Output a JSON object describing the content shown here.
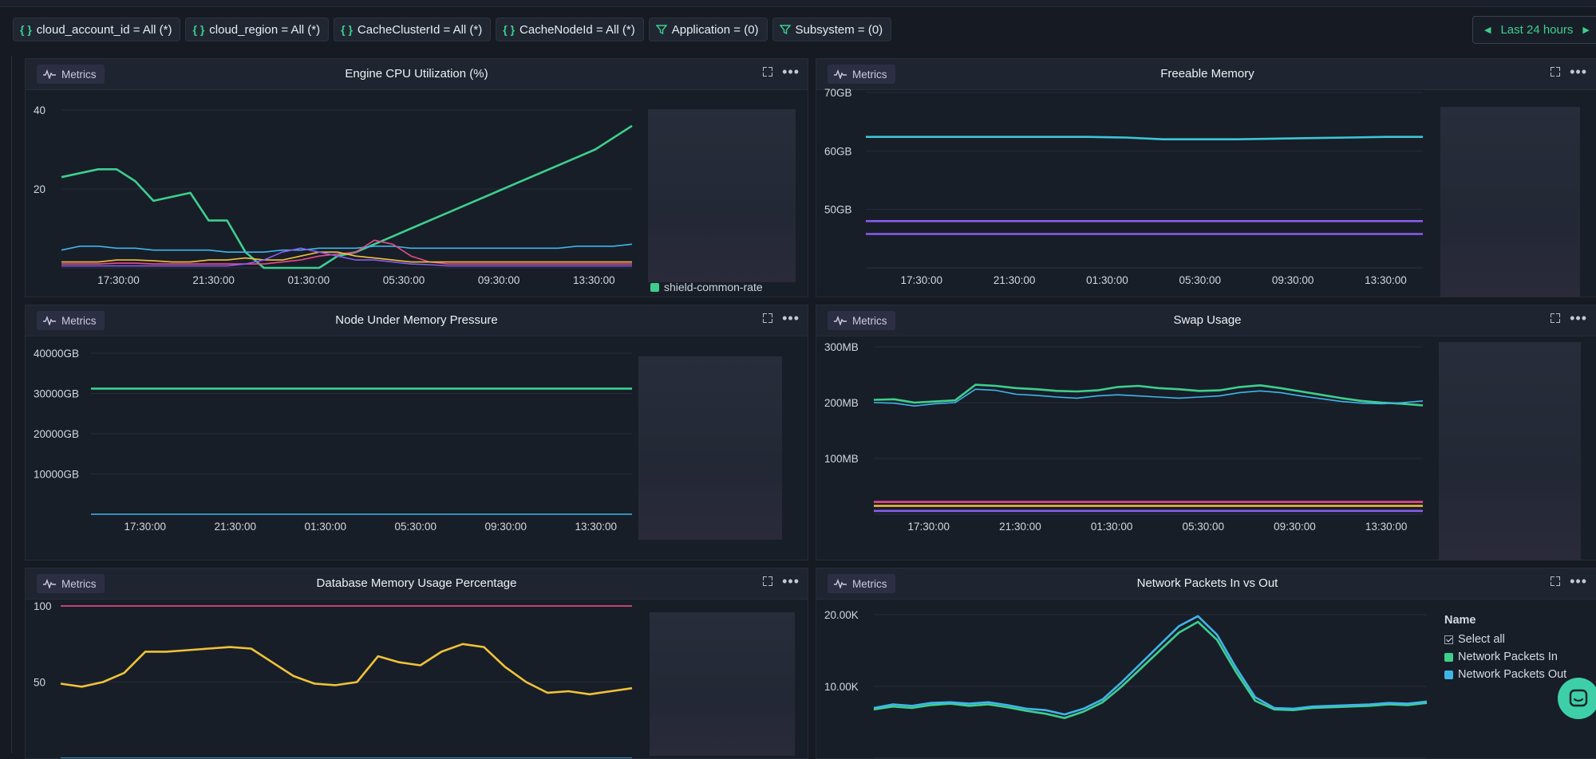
{
  "filters": [
    {
      "icon": "braces-icon",
      "label": "cloud_account_id = All (*)"
    },
    {
      "icon": "braces-icon",
      "label": "cloud_region = All (*)"
    },
    {
      "icon": "braces-icon",
      "label": "CacheClusterId = All (*)"
    },
    {
      "icon": "braces-icon",
      "label": "CacheNodeId = All (*)"
    },
    {
      "icon": "funnel-icon",
      "label": "Application = (0)"
    },
    {
      "icon": "funnel-icon",
      "label": "Subsystem = (0)"
    }
  ],
  "time_range": {
    "label": "Last 24 hours"
  },
  "badge_label": "Metrics",
  "colors": {
    "accent": "#3ecf8e",
    "green": "#3ecf8e",
    "blue": "#3fb5ea",
    "purple": "#8a5cf0",
    "pink": "#e84a8a",
    "yellow": "#f0c23a",
    "cyan": "#3cc7d6"
  },
  "panels": {
    "cpu": {
      "title": "Engine CPU Utilization (%)",
      "legend_item": "shield-common-rate"
    },
    "freeable": {
      "title": "Freeable Memory"
    },
    "pressure": {
      "title": "Node Under Memory Pressure"
    },
    "swap": {
      "title": "Swap Usage"
    },
    "dbmem": {
      "title": "Database Memory Usage Percentage"
    },
    "packets": {
      "title": "Network Packets In vs Out",
      "legend_header": "Name",
      "select_all": "Select all",
      "series_in": "Network Packets In",
      "series_out": "Network Packets Out"
    }
  },
  "chart_data": [
    {
      "type": "line",
      "title": "Engine CPU Utilization (%)",
      "x_ticks": [
        "17:30:00",
        "21:30:00",
        "01:30:00",
        "05:30:00",
        "09:30:00",
        "13:30:00"
      ],
      "y_ticks": [
        "20",
        "40"
      ],
      "ylim": [
        0,
        40
      ],
      "series": [
        {
          "name": "shield-common-rate",
          "color": "#3ecf8e",
          "values": [
            23,
            24,
            25,
            25,
            22,
            17,
            18,
            19,
            12,
            12,
            4,
            0,
            0,
            0,
            0,
            3,
            4,
            6,
            8,
            10,
            12,
            14,
            16,
            18,
            20,
            22,
            24,
            26,
            28,
            30,
            33,
            36
          ]
        },
        {
          "color": "#3fb5ea",
          "values": [
            4.5,
            5.5,
            5.5,
            5,
            5,
            4.5,
            4.5,
            4.5,
            4.5,
            4,
            4,
            4,
            4.5,
            4.5,
            5,
            5,
            5,
            5.5,
            5.5,
            5,
            5,
            5,
            5,
            5,
            5,
            5,
            5,
            5,
            5.5,
            5.5,
            5.5,
            6
          ]
        },
        {
          "color": "#e84a8a",
          "values": [
            1,
            1,
            1,
            1.2,
            1.2,
            1,
            1,
            1,
            1,
            1,
            1,
            1,
            1.5,
            2,
            3,
            3.5,
            4,
            7,
            6,
            3,
            1.5,
            1,
            1,
            1,
            1,
            1,
            1,
            1,
            1,
            1,
            1,
            1
          ]
        },
        {
          "color": "#f0c23a",
          "values": [
            1.5,
            1.5,
            1.5,
            2,
            2,
            1.8,
            1.5,
            1.5,
            2,
            2,
            2.5,
            2,
            2,
            3,
            4,
            4,
            3,
            2.5,
            2,
            1.5,
            1.5,
            1.5,
            1.5,
            1.5,
            1.5,
            1.5,
            1.5,
            1.5,
            1.5,
            1.5,
            1.5,
            1.5
          ]
        },
        {
          "color": "#8a5cf0",
          "values": [
            0.5,
            0.5,
            0.5,
            0.5,
            0.5,
            0.5,
            0.5,
            0.5,
            0.5,
            0.5,
            1,
            2,
            4,
            5,
            4,
            3,
            2,
            2,
            1.5,
            1,
            0.8,
            0.5,
            0.5,
            0.5,
            0.5,
            0.5,
            0.5,
            0.5,
            0.5,
            0.5,
            0.5,
            0.5
          ]
        }
      ]
    },
    {
      "type": "line",
      "title": "Freeable Memory",
      "x_ticks": [
        "17:30:00",
        "21:30:00",
        "01:30:00",
        "05:30:00",
        "09:30:00",
        "13:30:00"
      ],
      "y_ticks": [
        "50GB",
        "60GB",
        "70GB"
      ],
      "ylim": [
        40,
        70
      ],
      "series": [
        {
          "color": "#3cc7d6",
          "values": [
            62.4,
            62.4,
            62.4,
            62.4,
            62.4,
            62.4,
            62.4,
            62.3,
            62.0,
            62.0,
            62.0,
            62.1,
            62.2,
            62.3,
            62.4,
            62.4
          ]
        },
        {
          "color": "#8a5cf0",
          "values": [
            48.0,
            48.0,
            48.0,
            48.0,
            48.0,
            48.0,
            48.0,
            48.0,
            48.0,
            48.0,
            48.0,
            48.0,
            48.0,
            48.0,
            48.0,
            48.0
          ]
        },
        {
          "color": "#8a5cf0",
          "values": [
            45.8,
            45.8,
            45.8,
            45.8,
            45.8,
            45.8,
            45.8,
            45.8,
            45.8,
            45.8,
            45.8,
            45.8,
            45.8,
            45.8,
            45.8,
            45.8
          ]
        }
      ]
    },
    {
      "type": "line",
      "title": "Node Under Memory Pressure",
      "x_ticks": [
        "17:30:00",
        "21:30:00",
        "01:30:00",
        "05:30:00",
        "09:30:00",
        "13:30:00"
      ],
      "y_ticks": [
        "10000GB",
        "20000GB",
        "30000GB",
        "40000GB"
      ],
      "ylim": [
        0,
        40000
      ],
      "series": [
        {
          "color": "#3ecf8e",
          "values": [
            31200,
            31200,
            31200,
            31200,
            31200,
            31200,
            31200,
            31200,
            31200,
            31200
          ]
        },
        {
          "color": "#3fb5ea",
          "values": [
            0,
            0,
            0,
            0,
            0,
            0,
            0,
            0,
            0,
            0
          ]
        }
      ]
    },
    {
      "type": "line",
      "title": "Swap Usage",
      "x_ticks": [
        "17:30:00",
        "21:30:00",
        "01:30:00",
        "05:30:00",
        "09:30:00",
        "13:30:00"
      ],
      "y_ticks": [
        "100MB",
        "200MB",
        "300MB"
      ],
      "ylim": [
        0,
        300
      ],
      "series": [
        {
          "color": "#3ecf8e",
          "values": [
            205,
            206,
            200,
            202,
            204,
            232,
            230,
            226,
            224,
            221,
            220,
            222,
            228,
            230,
            226,
            224,
            221,
            222,
            228,
            231,
            226,
            220,
            214,
            208,
            203,
            200,
            198,
            195
          ]
        },
        {
          "color": "#3fb5ea",
          "values": [
            200,
            199,
            194,
            198,
            200,
            224,
            222,
            215,
            213,
            210,
            208,
            212,
            214,
            212,
            210,
            208,
            210,
            212,
            218,
            221,
            218,
            212,
            207,
            202,
            199,
            198,
            200,
            203
          ]
        },
        {
          "color": "#e84a8a",
          "values": [
            22,
            22,
            22,
            22,
            22,
            22,
            22,
            22,
            22,
            22,
            22,
            22,
            22,
            22,
            22,
            22,
            22,
            22,
            22,
            22,
            22,
            22,
            22,
            22,
            22,
            22,
            22,
            22
          ]
        },
        {
          "color": "#f0c23a",
          "values": [
            15,
            15,
            15,
            15,
            15,
            15,
            15,
            15,
            15,
            15,
            15,
            15,
            15,
            15,
            15,
            15,
            15,
            15,
            15,
            15,
            15,
            15,
            15,
            15,
            15,
            15,
            15,
            15
          ]
        },
        {
          "color": "#8a5cf0",
          "values": [
            6,
            6,
            6,
            6,
            6,
            6,
            6,
            6,
            6,
            6,
            6,
            6,
            6,
            6,
            6,
            6,
            6,
            6,
            6,
            6,
            6,
            6,
            6,
            6,
            6,
            6,
            6,
            6
          ]
        }
      ]
    },
    {
      "type": "line",
      "title": "Database Memory Usage Percentage",
      "x_ticks": [],
      "y_ticks": [
        "50",
        "100"
      ],
      "ylim": [
        0,
        110
      ],
      "series": [
        {
          "color": "#e84a8a",
          "values": [
            100,
            100,
            100,
            100,
            100,
            100,
            100,
            100,
            100,
            100,
            100,
            100,
            100,
            100,
            100,
            100,
            100,
            100,
            100,
            100,
            100,
            100,
            100,
            100,
            100,
            100,
            100,
            100
          ]
        },
        {
          "color": "#f0c23a",
          "values": [
            49,
            47,
            50,
            56,
            70,
            70,
            71,
            72,
            73,
            72,
            63,
            54,
            49,
            48,
            50,
            67,
            63,
            61,
            70,
            75,
            73,
            60,
            50,
            43,
            44,
            42,
            44,
            46
          ]
        },
        {
          "color": "#3fb5ea",
          "values": [
            0,
            0,
            0,
            0,
            0,
            0,
            0,
            0,
            0,
            0,
            0,
            0,
            0,
            0,
            0,
            0,
            0,
            0,
            0,
            0,
            0,
            0,
            0,
            0,
            0,
            0,
            0,
            0
          ]
        }
      ]
    },
    {
      "type": "line",
      "title": "Network Packets In vs Out",
      "x_ticks": [],
      "y_ticks": [
        "10.00K",
        "20.00K"
      ],
      "ylim": [
        0,
        22000
      ],
      "series": [
        {
          "name": "Network Packets In",
          "color": "#3ecf8e",
          "values": [
            6800,
            7200,
            7000,
            7400,
            7600,
            7300,
            7500,
            7100,
            6600,
            6200,
            5600,
            6500,
            7800,
            10000,
            12500,
            15000,
            17500,
            19000,
            16500,
            12000,
            8000,
            6800,
            6700,
            7000,
            7100,
            7200,
            7300,
            7500,
            7400,
            7700
          ]
        },
        {
          "name": "Network Packets Out",
          "color": "#3fb5ea",
          "values": [
            7000,
            7500,
            7300,
            7700,
            7800,
            7600,
            7800,
            7400,
            6900,
            6700,
            6100,
            6900,
            8200,
            10600,
            13200,
            15800,
            18400,
            19800,
            17200,
            12600,
            8500,
            7000,
            6900,
            7200,
            7300,
            7400,
            7500,
            7700,
            7600,
            7900
          ]
        }
      ]
    }
  ]
}
